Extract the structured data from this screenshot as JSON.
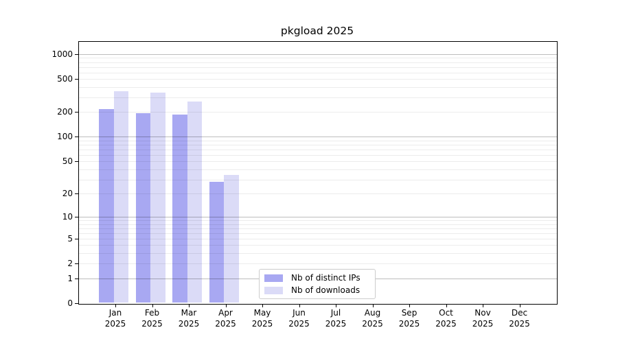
{
  "chart_data": {
    "type": "bar",
    "title": "pkgload 2025",
    "categories": [
      "Jan",
      "Feb",
      "Mar",
      "Apr",
      "May",
      "Jun",
      "Jul",
      "Aug",
      "Sep",
      "Oct",
      "Nov",
      "Dec"
    ],
    "year_label": "2025",
    "series": [
      {
        "name": "Nb of distinct IPs",
        "color": "#a8a8f2",
        "values": [
          218,
          195,
          187,
          28,
          0,
          0,
          0,
          0,
          0,
          0,
          0,
          0
        ]
      },
      {
        "name": "Nb of downloads",
        "color": "#dbdbf7",
        "values": [
          355,
          345,
          270,
          34,
          0,
          0,
          0,
          0,
          0,
          0,
          0,
          0
        ]
      }
    ],
    "y_axis": {
      "scale": "log1p",
      "tick_labels": [
        "1000",
        "500",
        "200",
        "100",
        "50",
        "20",
        "10",
        "5",
        "2",
        "1",
        "0"
      ],
      "tick_values": [
        1000,
        500,
        200,
        100,
        50,
        20,
        10,
        5,
        2,
        1,
        0
      ],
      "major_gridline_values": [
        1,
        10,
        100,
        1000
      ]
    },
    "grid": true,
    "legend_position": "inside-bottom-center"
  }
}
